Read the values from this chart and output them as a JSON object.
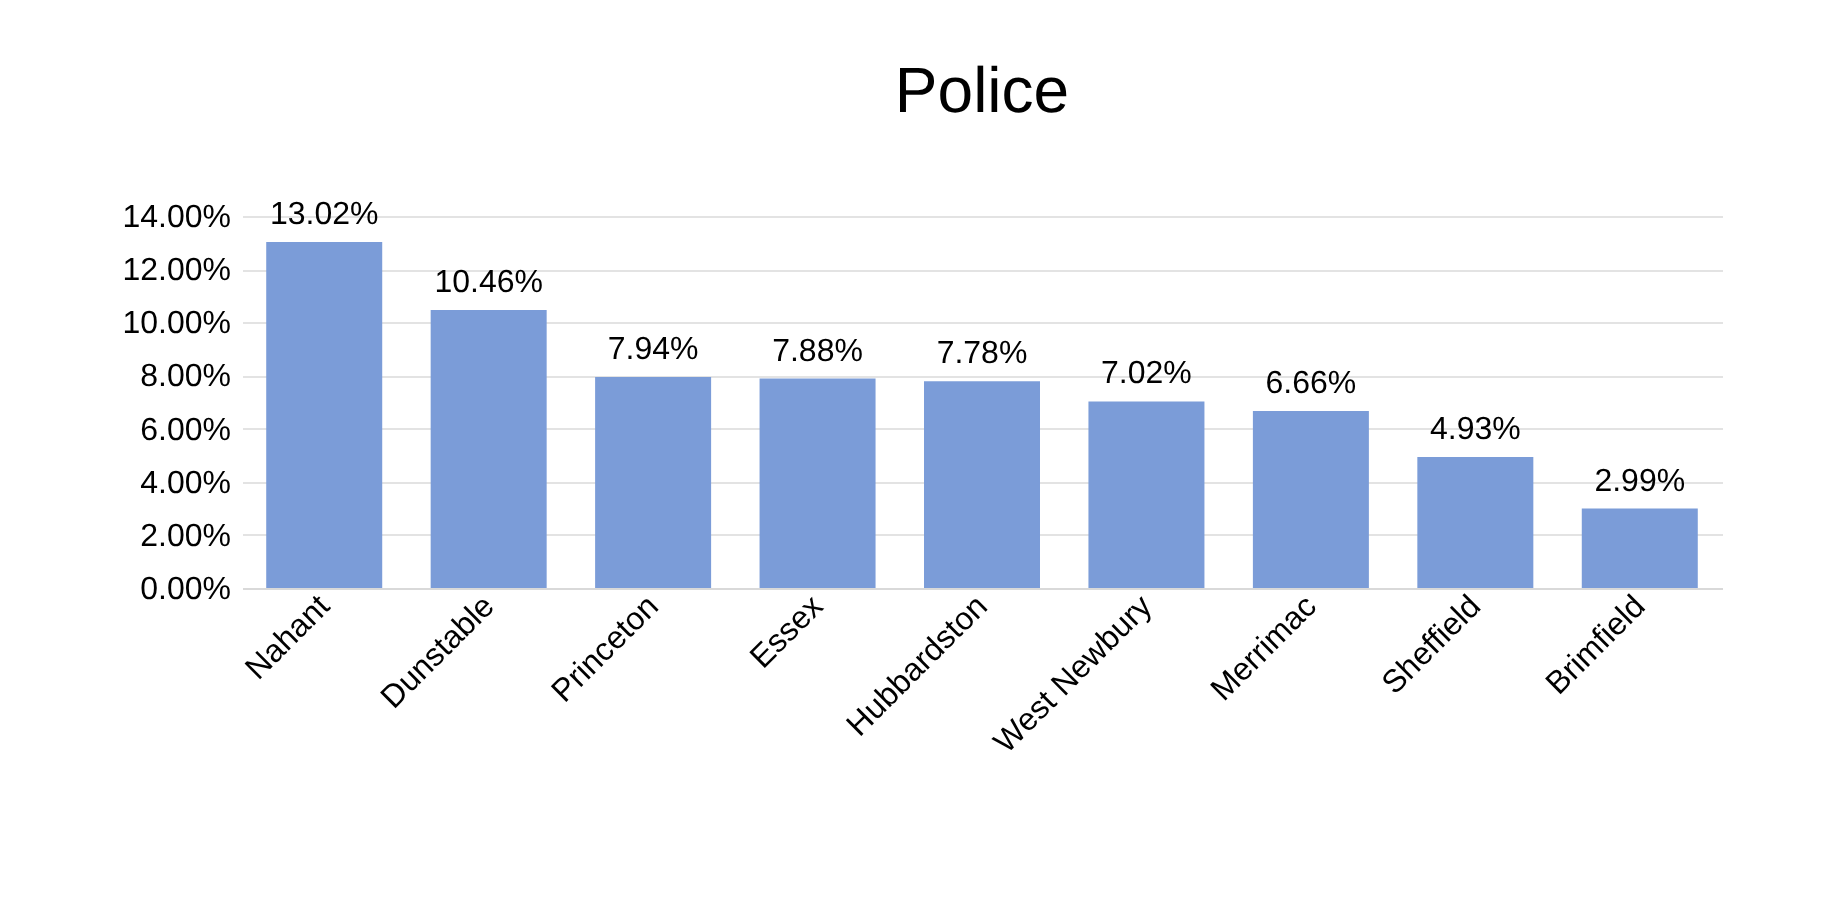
{
  "chart_data": {
    "type": "bar",
    "title": "Police",
    "categories": [
      "Nahant",
      "Dunstable",
      "Princeton",
      "Essex",
      "Hubbardston",
      "West Newbury",
      "Merrimac",
      "Sheffield",
      "Brimfield"
    ],
    "values": [
      13.02,
      10.46,
      7.94,
      7.88,
      7.78,
      7.02,
      6.66,
      4.93,
      2.99
    ],
    "value_labels": [
      "13.02%",
      "10.46%",
      "7.94%",
      "7.88%",
      "7.78%",
      "7.02%",
      "6.66%",
      "4.93%",
      "2.99%"
    ],
    "color": "#7b9cd8",
    "ylim": [
      0,
      14
    ],
    "yticks": [
      {
        "value": 0,
        "label": "0.00%"
      },
      {
        "value": 2,
        "label": "2.00%"
      },
      {
        "value": 4,
        "label": "4.00%"
      },
      {
        "value": 6,
        "label": "6.00%"
      },
      {
        "value": 8,
        "label": "8.00%"
      },
      {
        "value": 10,
        "label": "10.00%"
      },
      {
        "value": 12,
        "label": "12.00%"
      },
      {
        "value": 14,
        "label": "14.00%"
      }
    ],
    "grid": "y"
  }
}
